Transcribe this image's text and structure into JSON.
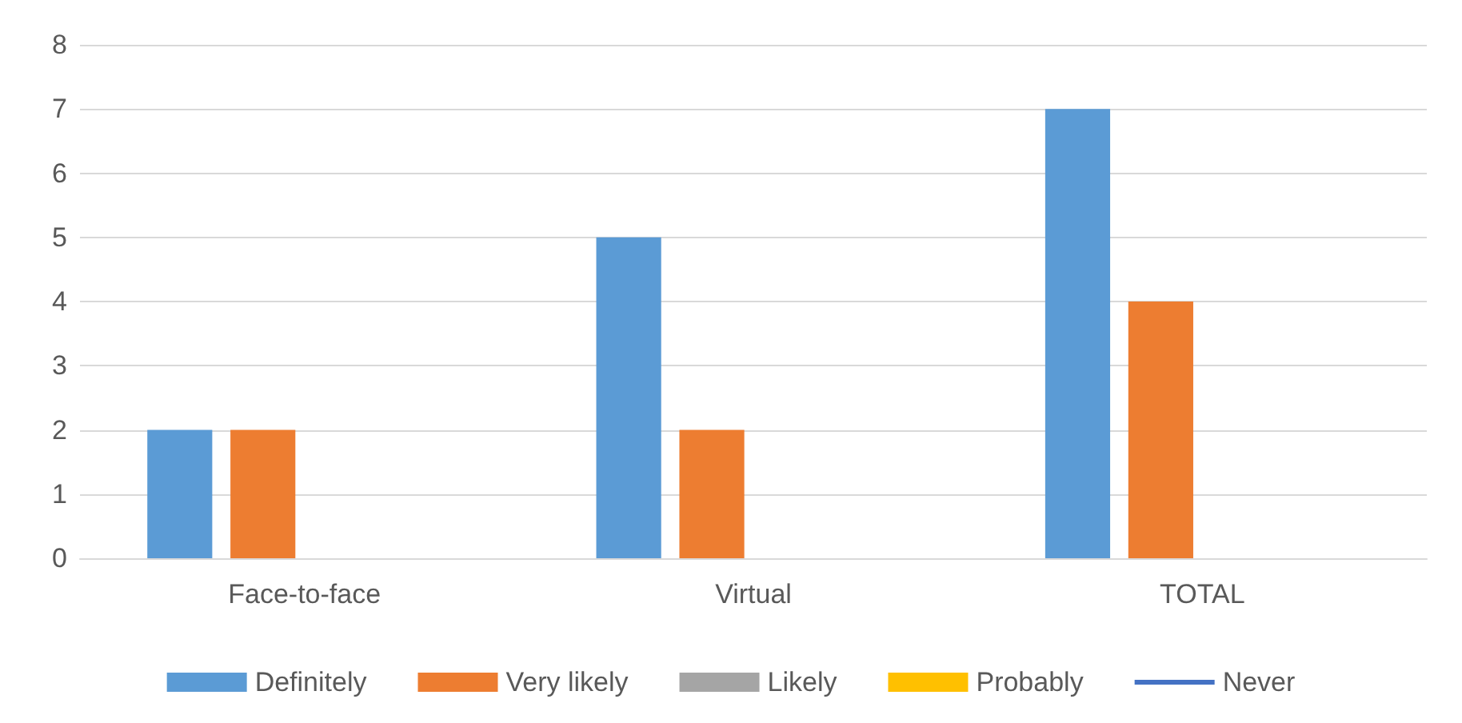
{
  "chart_data": {
    "type": "bar",
    "categories": [
      "Face-to-face",
      "Virtual",
      "TOTAL"
    ],
    "series": [
      {
        "name": "Definitely",
        "color": "#5b9bd5",
        "values": [
          2,
          5,
          7
        ]
      },
      {
        "name": "Very likely",
        "color": "#ed7d31",
        "values": [
          2,
          2,
          4
        ]
      },
      {
        "name": "Likely",
        "color": "#a5a5a5",
        "values": [
          0,
          0,
          0
        ]
      },
      {
        "name": "Probably",
        "color": "#ffc000",
        "values": [
          0,
          0,
          0
        ]
      },
      {
        "name": "Never",
        "color": "#4472c4",
        "type": "line",
        "values": [
          null,
          null,
          null
        ]
      }
    ],
    "ylim": [
      0,
      8
    ],
    "yticks": [
      0,
      1,
      2,
      3,
      4,
      5,
      6,
      7,
      8
    ],
    "grid": "y",
    "legend": "bottom",
    "marker": "none"
  }
}
